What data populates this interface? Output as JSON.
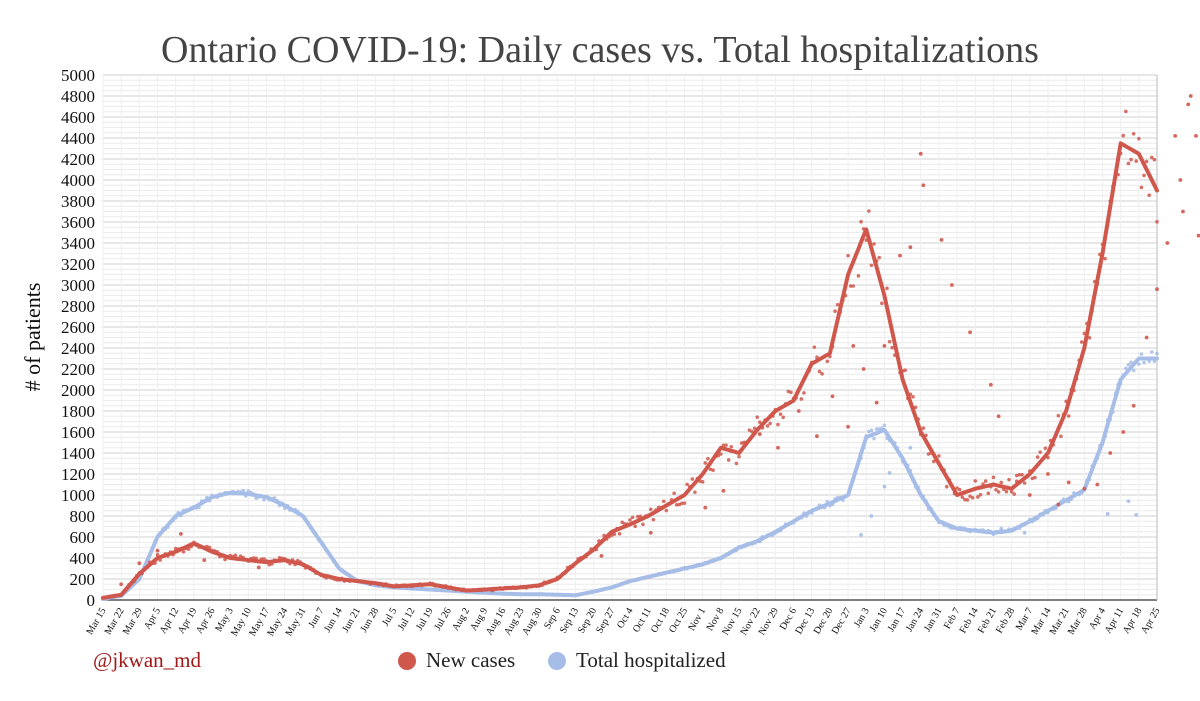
{
  "chart_data": {
    "type": "scatter",
    "title": "Ontario COVID-19: Daily cases vs. Total hospitalizations",
    "ylabel": "# of patients",
    "xlabel": "",
    "ylim": [
      0,
      5000
    ],
    "yticks": [
      0,
      200,
      400,
      600,
      800,
      1000,
      1200,
      1400,
      1600,
      1800,
      2000,
      2200,
      2400,
      2600,
      2800,
      3000,
      3200,
      3400,
      3600,
      3800,
      4000,
      4200,
      4400,
      4600,
      4800,
      5000
    ],
    "x_start_label": "Mar 15",
    "x_tick_labels": [
      "Mar 15",
      "Mar 22",
      "Mar 29",
      "Apr 5",
      "Apr 12",
      "Apr 19",
      "Apr 26",
      "May 3",
      "May 10",
      "May 17",
      "May 24",
      "May 31",
      "Jun 7",
      "Jun 14",
      "Jun 21",
      "Jun 28",
      "Jul 5",
      "Jul 12",
      "Jul 19",
      "Jul 26",
      "Aug 2",
      "Aug 9",
      "Aug 16",
      "Aug 23",
      "Aug 30",
      "Sep 6",
      "Sep 13",
      "Sep 20",
      "Sep 27",
      "Oct 4",
      "Oct 11",
      "Oct 18",
      "Oct 25",
      "Nov 1",
      "Nov 8",
      "Nov 15",
      "Nov 22",
      "Nov 29",
      "Dec 6",
      "Dec 13",
      "Dec 20",
      "Dec 27",
      "Jan 3",
      "Jan 10",
      "Jan 17",
      "Jan 24",
      "Jan 31",
      "Feb 7",
      "Feb 14",
      "Feb 21",
      "Feb 28",
      "Mar 7",
      "Mar 14",
      "Mar 21",
      "Mar 28",
      "Apr 4",
      "Apr 11",
      "Apr 18",
      "Apr 25"
    ],
    "grid": true,
    "legend_position": "bottom",
    "series": [
      {
        "name": "New cases",
        "color": "#d0574c",
        "style": "dots with smoothed trend line",
        "week_values": [
          20,
          50,
          250,
          400,
          460,
          540,
          460,
          400,
          380,
          360,
          380,
          340,
          240,
          200,
          180,
          160,
          130,
          140,
          150,
          120,
          90,
          100,
          110,
          120,
          140,
          200,
          350,
          480,
          650,
          720,
          800,
          900,
          1000,
          1200,
          1450,
          1400,
          1620,
          1800,
          1900,
          2250,
          2350,
          3100,
          3530,
          2900,
          2100,
          1600,
          1300,
          1000,
          1060,
          1100,
          1060,
          1200,
          1400,
          1800,
          2400,
          3300,
          4350,
          4250,
          3900
        ],
        "scatter_points": [
          [
            7,
            150
          ],
          [
            14,
            350
          ],
          [
            21,
            470
          ],
          [
            30,
            630
          ],
          [
            39,
            380
          ],
          [
            52,
            390
          ],
          [
            60,
            310
          ],
          [
            105,
            160
          ],
          [
            113,
            140
          ],
          [
            150,
            90
          ],
          [
            192,
            420
          ],
          [
            211,
            640
          ],
          [
            232,
            880
          ],
          [
            239,
            1040
          ],
          [
            247,
            1500
          ],
          [
            253,
            1580
          ],
          [
            260,
            1450
          ],
          [
            268,
            1800
          ],
          [
            275,
            1560
          ],
          [
            281,
            1940
          ],
          [
            287,
            1650
          ],
          [
            289,
            2420
          ],
          [
            293,
            2200
          ],
          [
            298,
            1880
          ],
          [
            301,
            2420
          ],
          [
            307,
            3280
          ],
          [
            311,
            3360
          ],
          [
            315,
            4250
          ],
          [
            316,
            3950
          ],
          [
            323,
            3430
          ],
          [
            327,
            3000
          ],
          [
            334,
            2550
          ],
          [
            342,
            2050
          ],
          [
            345,
            1750
          ],
          [
            352,
            1130
          ],
          [
            357,
            1000
          ],
          [
            364,
            1200
          ],
          [
            368,
            910
          ],
          [
            372,
            1120
          ],
          [
            378,
            1060
          ],
          [
            383,
            1100
          ],
          [
            388,
            1400
          ],
          [
            393,
            1600
          ],
          [
            397,
            1850
          ],
          [
            402,
            2500
          ],
          [
            406,
            2960
          ],
          [
            410,
            3400
          ],
          [
            413,
            4420
          ],
          [
            415,
            4000
          ],
          [
            416,
            3700
          ],
          [
            418,
            4720
          ],
          [
            419,
            4800
          ],
          [
            421,
            4420
          ],
          [
            422,
            3470
          ],
          [
            424,
            3700
          ],
          [
            425,
            4500
          ],
          [
            427,
            3900
          ],
          [
            430,
            3510
          ],
          [
            431,
            3280
          ]
        ]
      },
      {
        "name": "Total hospitalized",
        "color": "#a6bde8",
        "style": "dots with smoothed trend line",
        "week_values": [
          10,
          40,
          200,
          600,
          800,
          880,
          980,
          1020,
          1010,
          980,
          900,
          800,
          550,
          300,
          180,
          140,
          120,
          110,
          100,
          90,
          80,
          70,
          60,
          55,
          55,
          50,
          45,
          80,
          120,
          180,
          220,
          260,
          300,
          340,
          400,
          500,
          560,
          650,
          750,
          850,
          920,
          1000,
          1550,
          1620,
          1350,
          1000,
          750,
          680,
          660,
          640,
          660,
          750,
          850,
          950,
          1050,
          1500,
          2100,
          2300,
          2300
        ],
        "scatter_points": [
          [
            292,
            620
          ],
          [
            296,
            800
          ],
          [
            301,
            1080
          ],
          [
            303,
            1210
          ],
          [
            311,
            1450
          ],
          [
            346,
            680
          ],
          [
            355,
            640
          ],
          [
            387,
            820
          ],
          [
            395,
            940
          ],
          [
            398,
            810
          ],
          [
            426,
            2360
          ],
          [
            430,
            2150
          ],
          [
            431,
            2350
          ]
        ]
      }
    ]
  },
  "legend": {
    "new_cases": "New cases",
    "total_hospitalized": "Total hospitalized"
  },
  "credit": "@jkwan_md"
}
